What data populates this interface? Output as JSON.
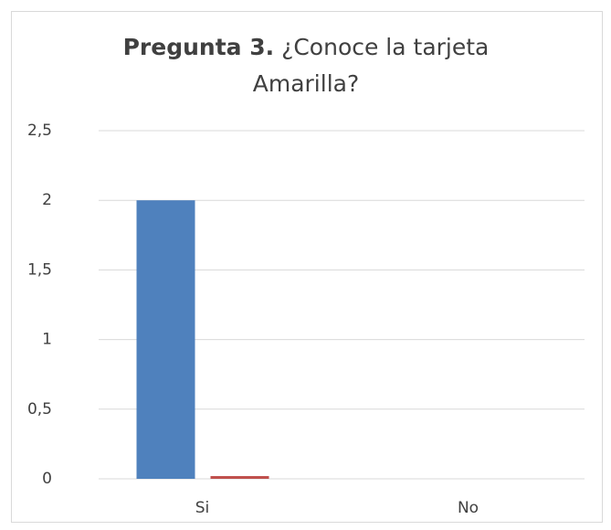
{
  "chart_data": {
    "type": "bar",
    "title_label": "Pregunta 3.",
    "title": "¿Conoce la tarjeta Amarilla?",
    "categories": [
      "Si",
      "No"
    ],
    "series": [
      {
        "color": "#4f81bd",
        "values": [
          2,
          0
        ]
      },
      {
        "color": "#c0504d",
        "values": [
          0.02,
          0
        ]
      }
    ],
    "ylim": [
      0,
      2.5
    ],
    "yticks": [
      0,
      {
        "value": 0.5,
        "label": "0,5"
      },
      1,
      {
        "value": 1.5,
        "label": "1,5"
      },
      2,
      {
        "value": 2.5,
        "label": "2,5"
      }
    ],
    "grid": true
  }
}
